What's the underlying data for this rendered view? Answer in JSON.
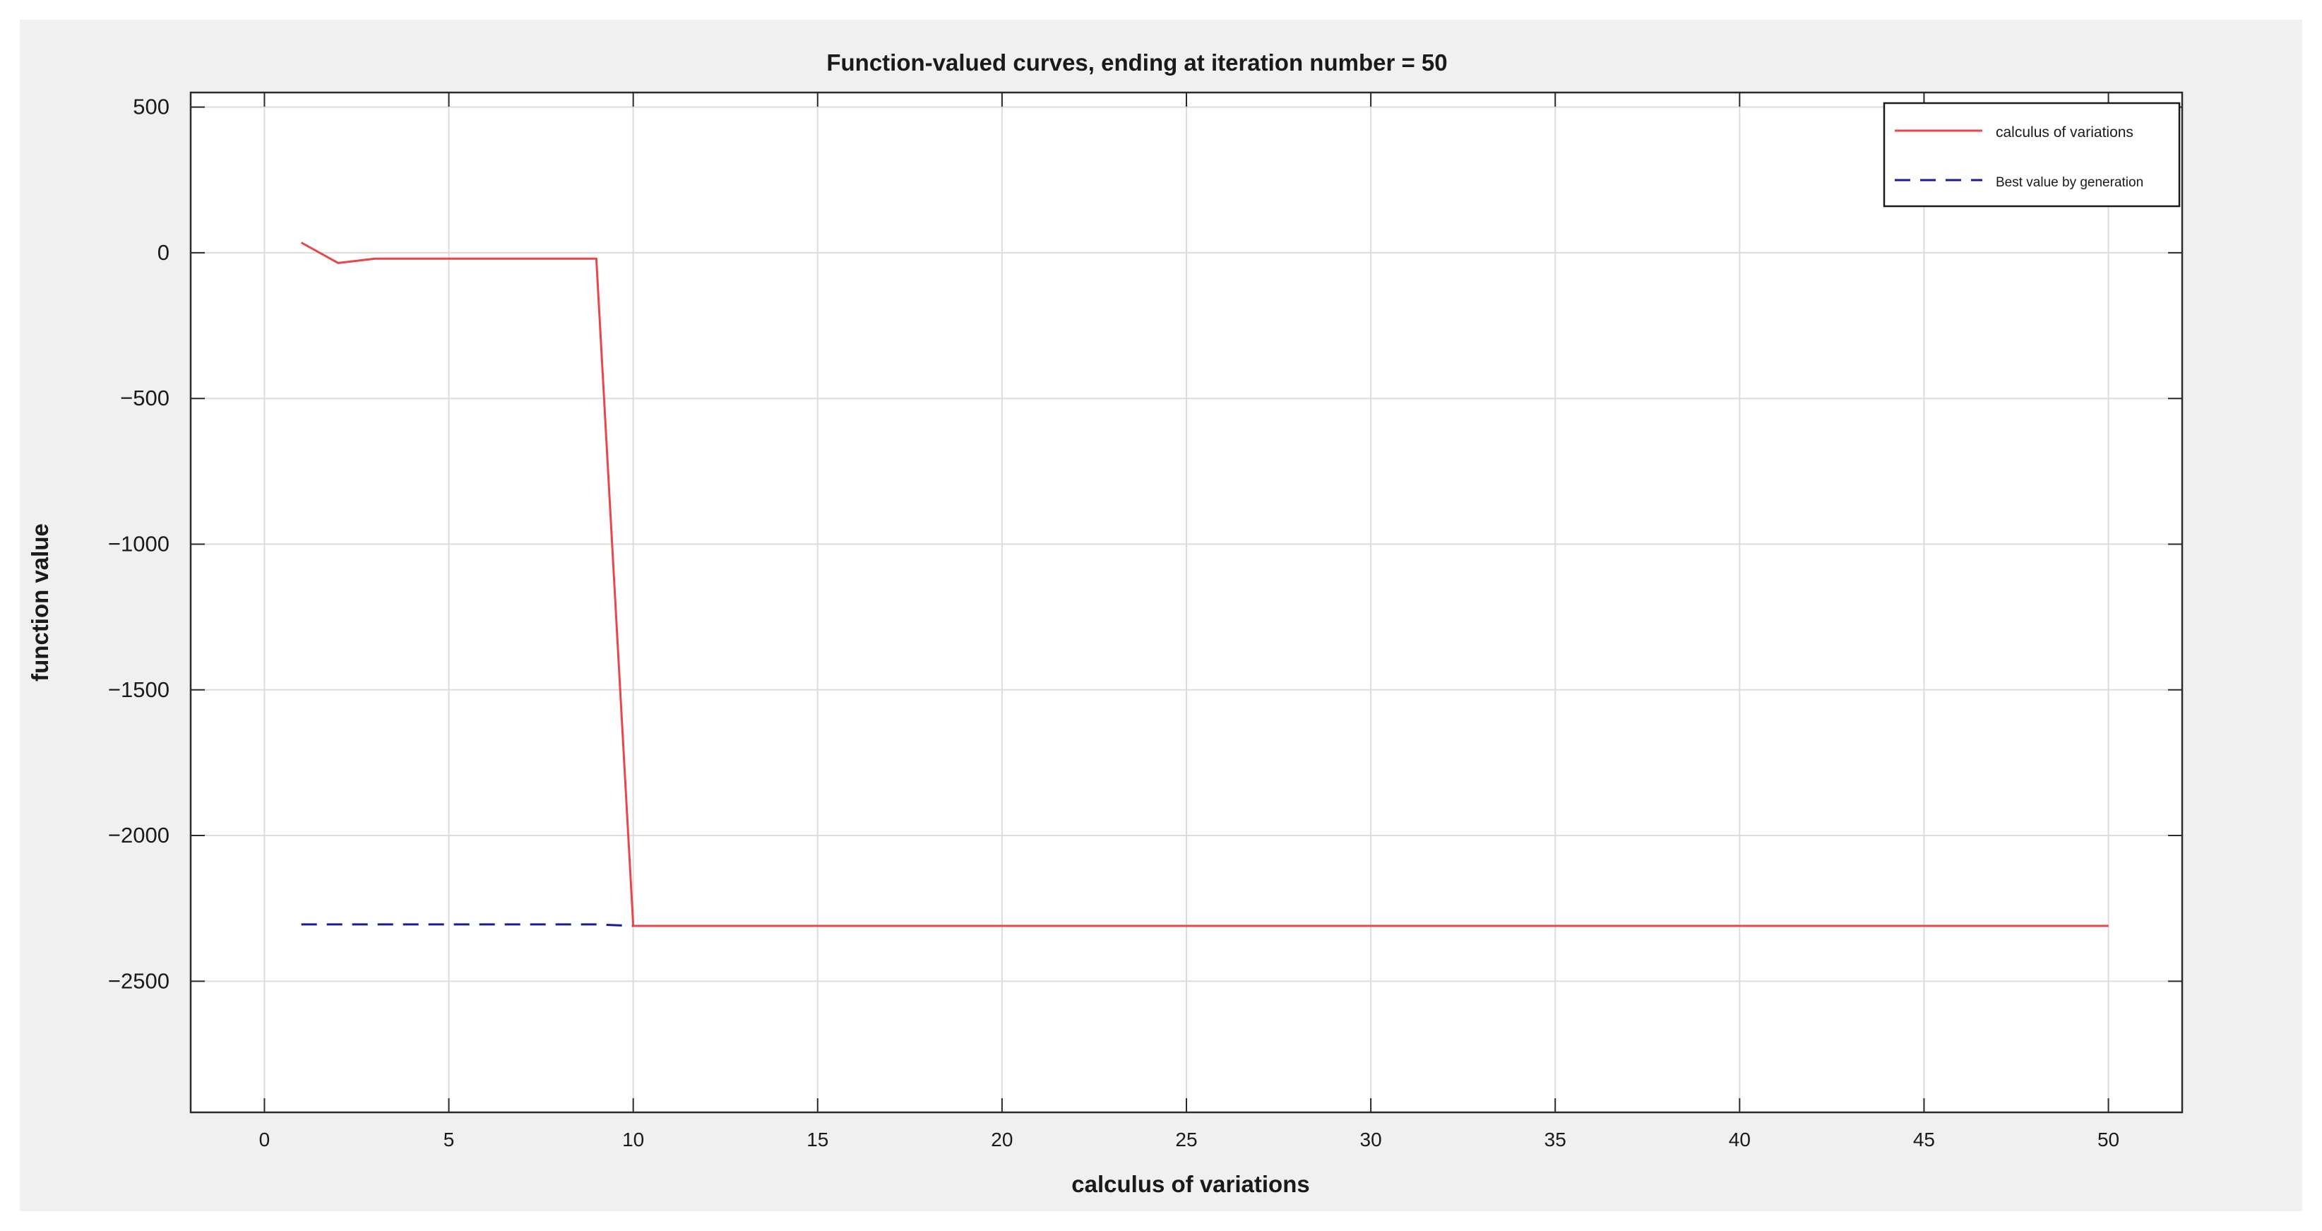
{
  "chart_data": {
    "type": "line",
    "title": "Function-valued curves, ending at iteration number = 50",
    "xlabel": "calculus of variations",
    "ylabel": "function value",
    "xlim": [
      -2,
      52
    ],
    "ylim": [
      -2950,
      550
    ],
    "xticks": [
      0,
      5,
      10,
      15,
      20,
      25,
      30,
      35,
      40,
      45,
      50
    ],
    "yticks": [
      500,
      0,
      -500,
      -1000,
      -1500,
      -2000,
      -2500
    ],
    "xtick_labels": [
      "0",
      "5",
      "10",
      "15",
      "20",
      "25",
      "30",
      "35",
      "40",
      "45",
      "50"
    ],
    "ytick_labels": [
      "500",
      "0",
      "−500",
      "−1000",
      "−1500",
      "−2000",
      "−2500"
    ],
    "grid": true,
    "legend_position": "top-right",
    "series": [
      {
        "name": "calculus of variations",
        "color": "#e8474a",
        "style": "solid",
        "x": [
          1,
          2,
          3,
          4,
          5,
          6,
          7,
          8,
          9,
          10,
          15,
          20,
          25,
          30,
          35,
          40,
          45,
          50
        ],
        "y": [
          35,
          -35,
          -20,
          -20,
          -20,
          -20,
          -20,
          -20,
          -20,
          -2310,
          -2310,
          -2310,
          -2310,
          -2310,
          -2310,
          -2310,
          -2310,
          -2310
        ]
      },
      {
        "name": "Best value by generation",
        "color": "#1a1a9a",
        "style": "dashed",
        "x": [
          1,
          9,
          10,
          50
        ],
        "y": [
          -2305,
          -2305,
          -2310,
          -2310
        ]
      }
    ]
  }
}
